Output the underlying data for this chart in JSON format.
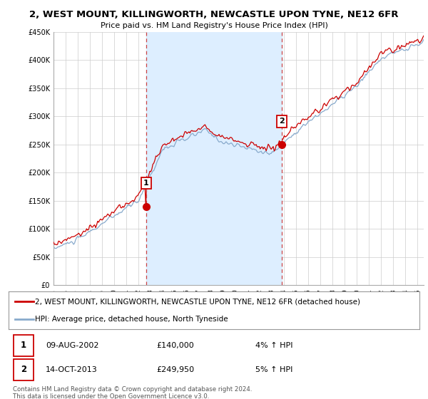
{
  "title": "2, WEST MOUNT, KILLINGWORTH, NEWCASTLE UPON TYNE, NE12 6FR",
  "subtitle": "Price paid vs. HM Land Registry's House Price Index (HPI)",
  "ylim": [
    0,
    450000
  ],
  "yticks": [
    0,
    50000,
    100000,
    150000,
    200000,
    250000,
    300000,
    350000,
    400000,
    450000
  ],
  "line1_color": "#cc0000",
  "line2_color": "#88aacc",
  "marker_color": "#cc0000",
  "vline_color": "#cc4444",
  "fill_color": "#ddeeff",
  "purchase1_year": 2002.625,
  "purchase1_value": 140000,
  "purchase2_year": 2013.79,
  "purchase2_value": 249950,
  "legend_line1": "2, WEST MOUNT, KILLINGWORTH, NEWCASTLE UPON TYNE, NE12 6FR (detached house)",
  "legend_line2": "HPI: Average price, detached house, North Tyneside",
  "table_row1": [
    "1",
    "09-AUG-2002",
    "£140,000",
    "4% ↑ HPI"
  ],
  "table_row2": [
    "2",
    "14-OCT-2013",
    "£249,950",
    "5% ↑ HPI"
  ],
  "footnote": "Contains HM Land Registry data © Crown copyright and database right 2024.\nThis data is licensed under the Open Government Licence v3.0.",
  "bg_color": "#ffffff",
  "plot_bg_color": "#ffffff",
  "grid_color": "#cccccc"
}
